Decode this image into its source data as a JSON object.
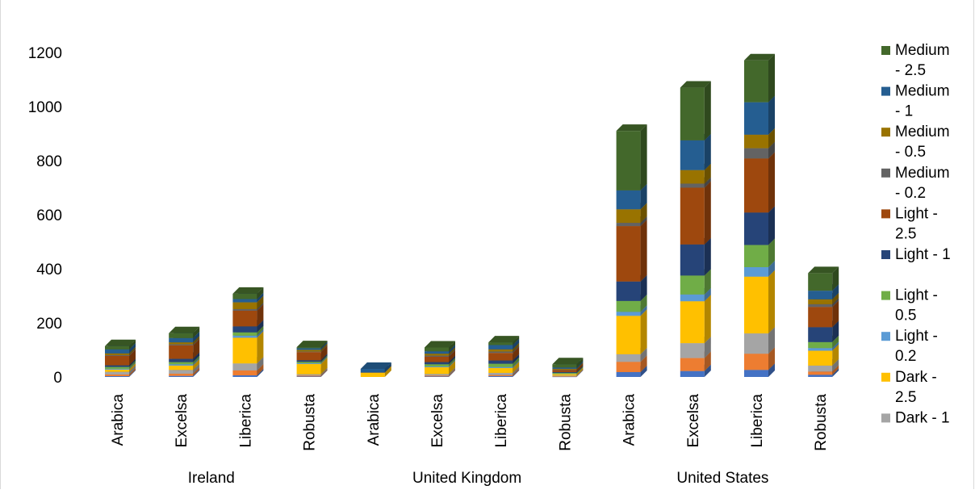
{
  "chart_data": {
    "type": "bar",
    "stacked": true,
    "style": "3d-column",
    "groups": [
      {
        "label": "Ireland",
        "categories": [
          "Arabica",
          "Excelsa",
          "Liberica",
          "Robusta"
        ]
      },
      {
        "label": "United Kingdom",
        "categories": [
          "Arabica",
          "Excelsa",
          "Liberica",
          "Robusta"
        ]
      },
      {
        "label": "United States",
        "categories": [
          "Arabica",
          "Excelsa",
          "Liberica",
          "Robusta"
        ]
      }
    ],
    "ylim": [
      0,
      1200
    ],
    "yticks": [
      0,
      200,
      400,
      600,
      800,
      1000,
      1200
    ],
    "grid": false,
    "legend_position": "right",
    "series": [
      {
        "name": "Dark - 0.2",
        "color": "#4472c4",
        "values": [
          3,
          4,
          6,
          2,
          0,
          2,
          3,
          1,
          18,
          22,
          26,
          8
        ]
      },
      {
        "name": "Dark - 0.5",
        "color": "#ed7d31",
        "values": [
          6,
          8,
          18,
          3,
          0,
          3,
          4,
          1,
          38,
          48,
          60,
          12
        ]
      },
      {
        "name": "Dark - 1",
        "color": "#a5a5a5",
        "values": [
          10,
          14,
          26,
          5,
          0,
          6,
          8,
          3,
          28,
          55,
          75,
          22
        ]
      },
      {
        "name": "Dark - 2.5",
        "color": "#ffc000",
        "values": [
          8,
          16,
          95,
          38,
          16,
          25,
          18,
          6,
          142,
          155,
          210,
          55
        ]
      },
      {
        "name": "Light - 0.2",
        "color": "#5b9bd5",
        "values": [
          3,
          5,
          8,
          3,
          0,
          3,
          4,
          1,
          15,
          25,
          35,
          10
        ]
      },
      {
        "name": "Light - 0.5",
        "color": "#70ad47",
        "values": [
          7,
          8,
          12,
          5,
          0,
          8,
          12,
          3,
          40,
          70,
          82,
          22
        ]
      },
      {
        "name": "Light - 1",
        "color": "#264478",
        "values": [
          6,
          12,
          22,
          6,
          2,
          8,
          12,
          3,
          72,
          115,
          120,
          55
        ]
      },
      {
        "name": "Light - 2.5",
        "color": "#9e480e",
        "values": [
          35,
          50,
          58,
          30,
          0,
          20,
          28,
          8,
          205,
          210,
          200,
          75
        ]
      },
      {
        "name": "Medium - 0.2",
        "color": "#636363",
        "values": [
          3,
          4,
          6,
          2,
          0,
          4,
          5,
          1,
          12,
          15,
          38,
          10
        ]
      },
      {
        "name": "Medium - 0.5",
        "color": "#997300",
        "values": [
          6,
          7,
          25,
          6,
          0,
          7,
          8,
          3,
          50,
          50,
          50,
          18
        ]
      },
      {
        "name": "Medium - 1",
        "color": "#255e91",
        "values": [
          15,
          16,
          12,
          6,
          12,
          9,
          16,
          5,
          70,
          110,
          120,
          32
        ]
      },
      {
        "name": "Medium - 2.5",
        "color": "#43682b",
        "values": [
          12,
          18,
          20,
          4,
          0,
          14,
          10,
          12,
          220,
          195,
          155,
          65
        ]
      }
    ]
  }
}
